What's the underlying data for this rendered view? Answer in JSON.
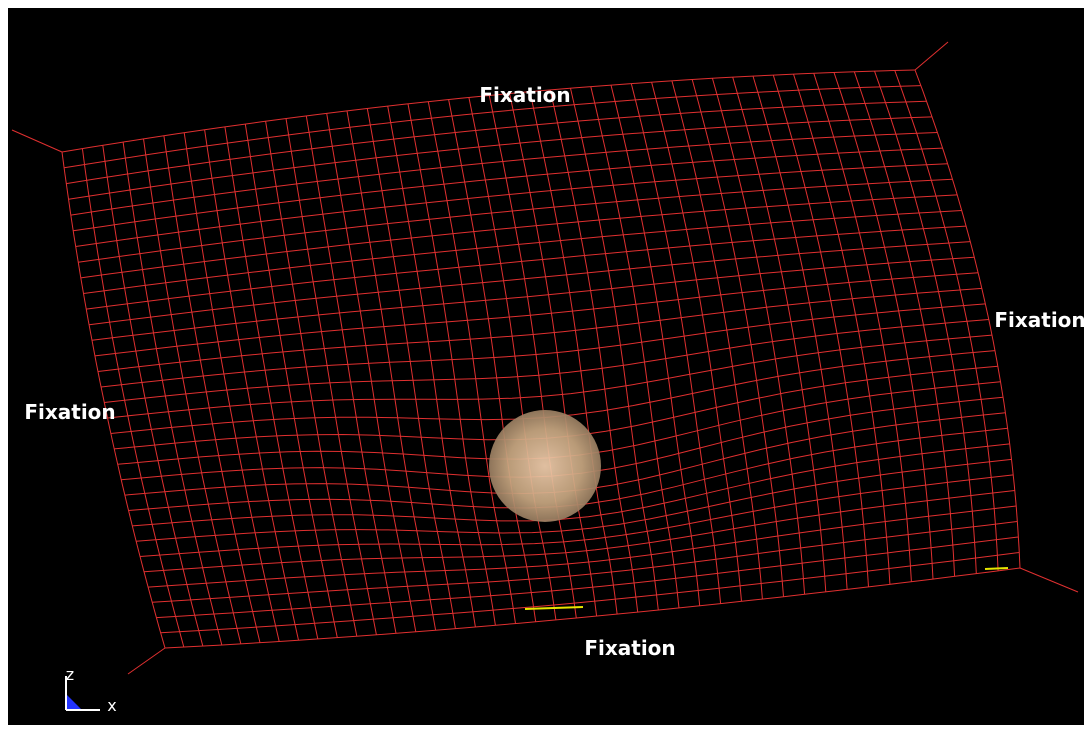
{
  "labels": {
    "top": "Fixation",
    "right": "Fixation",
    "left": "Fixation",
    "bottom": "Fixation"
  },
  "axis_triad": {
    "z": "z",
    "x": "x"
  }
}
